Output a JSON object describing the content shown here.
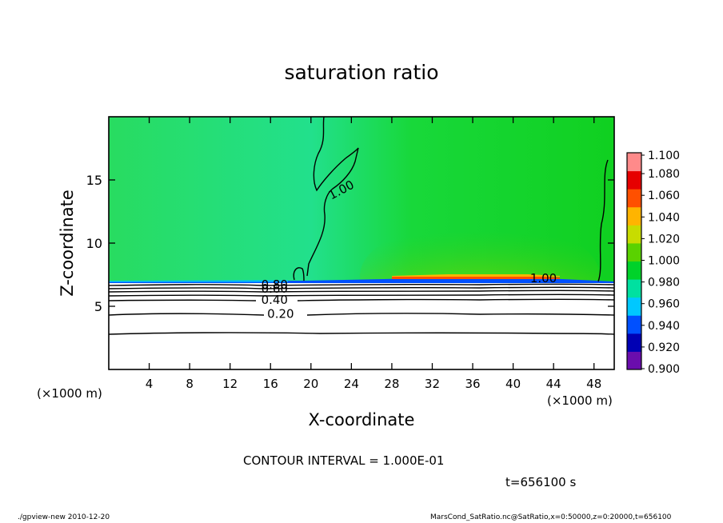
{
  "chart_data": {
    "type": "heatmap",
    "title": "saturation ratio",
    "xlabel": "X-coordinate",
    "ylabel": "Z-coordinate",
    "x_unit_note": "(×1000 m)",
    "y_unit_note": "(×1000 m)",
    "xlim": [
      0,
      50
    ],
    "ylim": [
      0,
      20
    ],
    "x_ticks": [
      4,
      8,
      12,
      16,
      20,
      24,
      28,
      32,
      36,
      40,
      44,
      48
    ],
    "y_ticks": [
      5,
      10,
      15
    ],
    "colorbar": {
      "levels": [
        0.9,
        0.92,
        0.94,
        0.96,
        0.98,
        1.0,
        1.02,
        1.04,
        1.06,
        1.08,
        1.1
      ],
      "labels": [
        "0.900",
        "0.920",
        "0.940",
        "0.960",
        "0.980",
        "1.000",
        "1.020",
        "1.040",
        "1.060",
        "1.080",
        "1.100"
      ],
      "colors": [
        "#6a0dad",
        "#0000b4",
        "#0050ff",
        "#00c8ff",
        "#00e0a0",
        "#00d22a",
        "#5ad200",
        "#c8dc00",
        "#ffb400",
        "#ff5000",
        "#e60000",
        "#ff8a8a"
      ]
    },
    "contour_labels": [
      {
        "text": "1.00",
        "x": 23.0,
        "z": 14.2
      },
      {
        "text": "1.00",
        "x": 43.0,
        "z": 7.2
      },
      {
        "text": "0.80",
        "x": 16.4,
        "z": 6.7
      },
      {
        "text": "0.60",
        "x": 16.4,
        "z": 6.4
      },
      {
        "text": "0.40",
        "x": 16.4,
        "z": 5.5
      },
      {
        "text": "0.20",
        "x": 17.0,
        "z": 4.4
      }
    ],
    "contour_interval_text": "CONTOUR INTERVAL = 1.000E-01",
    "time_text": "t=656100 s"
  },
  "footer": {
    "left": "./gpview-new   2010-12-20",
    "right": "MarsCond_SatRatio.nc@SatRatio,x=0:50000,z=0:20000,t=656100"
  },
  "colors": {
    "background": "#ffffff",
    "saturated_green": "#10d020",
    "subsaturated_teal": "#20e08a",
    "dry_layer": "#ffffff"
  }
}
